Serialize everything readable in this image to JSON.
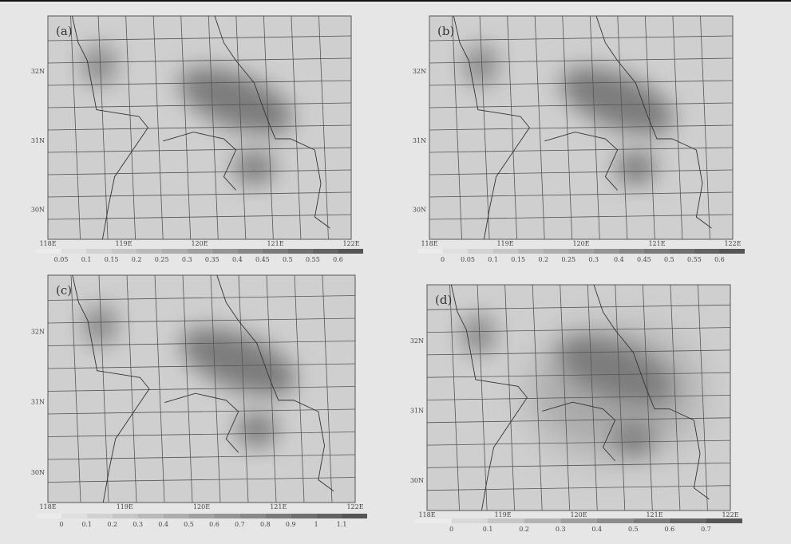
{
  "panels": [
    {
      "label": "(a)",
      "lat_labels": [
        "32N",
        "31N",
        "30N"
      ],
      "lon_labels": [
        "118E",
        "119E",
        "120E",
        "121E",
        "122E"
      ],
      "colorbar_labels": [
        "0.05",
        "0.1",
        "0.15",
        "0.2",
        "0.25",
        "0.3",
        "0.35",
        "0.4",
        "0.45",
        "0.5",
        "0.55",
        "0.6"
      ]
    },
    {
      "label": "(b)",
      "lat_labels": [
        "32N",
        "31N",
        "30N"
      ],
      "lon_labels": [
        "118E",
        "119E",
        "120E",
        "121E",
        "122E"
      ],
      "colorbar_labels": [
        "0",
        "0.05",
        "0.1",
        "0.15",
        "0.2",
        "0.25",
        "0.3",
        "0.4",
        "0.45",
        "0.5",
        "0.55",
        "0.6"
      ]
    },
    {
      "label": "(c)",
      "lat_labels": [
        "32N",
        "31N",
        "30N"
      ],
      "lon_labels": [
        "118E",
        "119E",
        "120E",
        "121E",
        "122E"
      ],
      "colorbar_labels": [
        "0",
        "0.1",
        "0.2",
        "0.3",
        "0.4",
        "0.5",
        "0.6",
        "0.7",
        "0.8",
        "0.9",
        "1",
        "1.1"
      ]
    },
    {
      "label": "(d)",
      "lat_labels": [
        "32N",
        "31N",
        "30N"
      ],
      "lon_labels": [
        "118E",
        "119E",
        "120E",
        "121E",
        "122E"
      ],
      "colorbar_labels": [
        "0",
        "0.1",
        "0.2",
        "0.3",
        "0.4",
        "0.5",
        "0.6",
        "0.7"
      ]
    }
  ]
}
